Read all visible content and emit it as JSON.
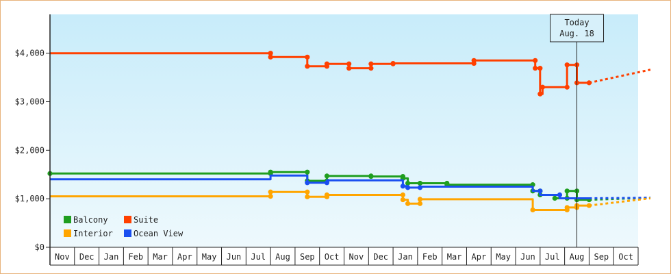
{
  "chart_data": {
    "type": "line",
    "title": "",
    "xlabel": "",
    "ylabel": "",
    "ylim": [
      0,
      4800
    ],
    "y_ticks": [
      "$0",
      "$1,000",
      "$2,000",
      "$3,000",
      "$4,000"
    ],
    "y_tick_values": [
      0,
      1000,
      2000,
      3000,
      4000
    ],
    "months": [
      "Nov",
      "Dec",
      "Jan",
      "Feb",
      "Mar",
      "Apr",
      "May",
      "Jun",
      "Jul",
      "Aug",
      "Sep",
      "Oct",
      "Nov",
      "Dec",
      "Jan",
      "Feb",
      "Mar",
      "Apr",
      "May",
      "Jun",
      "Jul",
      "Aug",
      "Sep",
      "Oct"
    ],
    "today_label": [
      "Today",
      "Aug. 18"
    ],
    "today_index": 21.5,
    "legend_placement": "bottom-left",
    "colors": {
      "Balcony": "#1f9e1f",
      "Suite": "#ff4000",
      "Interior": "#ffa500",
      "Ocean View": "#1a4ff0",
      "bg_top": "#c8ecfa",
      "bg_bottom": "#eef9fd",
      "border": "#e8b37a"
    },
    "series": [
      {
        "name": "Suite",
        "points": [
          [
            0,
            4000
          ],
          [
            9,
            4000
          ],
          [
            9,
            3920
          ],
          [
            10.5,
            3920
          ],
          [
            10.5,
            3730
          ],
          [
            11.3,
            3730
          ],
          [
            11.3,
            3780
          ],
          [
            12.2,
            3780
          ],
          [
            12.2,
            3690
          ],
          [
            13.1,
            3690
          ],
          [
            13.1,
            3780
          ],
          [
            14,
            3780
          ],
          [
            14,
            3790
          ],
          [
            17.3,
            3790
          ],
          [
            17.3,
            3850
          ],
          [
            19.8,
            3850
          ],
          [
            19.8,
            3690
          ],
          [
            20,
            3690
          ],
          [
            20,
            3160
          ],
          [
            20.1,
            3160
          ],
          [
            20.1,
            3300
          ],
          [
            21.1,
            3300
          ],
          [
            21.1,
            3760
          ],
          [
            21.5,
            3760
          ],
          [
            21.5,
            3390
          ],
          [
            22,
            3390
          ]
        ],
        "markers": [
          [
            9,
            4000
          ],
          [
            9,
            3920
          ],
          [
            10.5,
            3920
          ],
          [
            10.5,
            3730
          ],
          [
            11.3,
            3730
          ],
          [
            11.3,
            3780
          ],
          [
            12.2,
            3780
          ],
          [
            12.2,
            3690
          ],
          [
            13.1,
            3690
          ],
          [
            13.1,
            3780
          ],
          [
            14,
            3780
          ],
          [
            14,
            3790
          ],
          [
            17.3,
            3790
          ],
          [
            17.3,
            3850
          ],
          [
            19.8,
            3850
          ],
          [
            19.8,
            3690
          ],
          [
            20,
            3690
          ],
          [
            20,
            3160
          ],
          [
            20.1,
            3300
          ],
          [
            21.1,
            3300
          ],
          [
            21.1,
            3760
          ],
          [
            21.5,
            3760
          ],
          [
            21.5,
            3390
          ],
          [
            22,
            3390
          ]
        ],
        "forecast": [
          [
            22,
            3390
          ],
          [
            24.5,
            3660
          ]
        ]
      },
      {
        "name": "Balcony",
        "points": [
          [
            0,
            1520
          ],
          [
            9,
            1520
          ],
          [
            9,
            1550
          ],
          [
            10.5,
            1550
          ],
          [
            10.5,
            1370
          ],
          [
            11.3,
            1370
          ],
          [
            11.3,
            1470
          ],
          [
            13.1,
            1470
          ],
          [
            13.1,
            1460
          ],
          [
            14.4,
            1460
          ],
          [
            14.4,
            1420
          ],
          [
            14.6,
            1420
          ],
          [
            14.6,
            1320
          ],
          [
            15.1,
            1320
          ],
          [
            15.1,
            1320
          ],
          [
            16.2,
            1320
          ],
          [
            16.2,
            1290
          ],
          [
            19.7,
            1290
          ],
          [
            19.7,
            1160
          ],
          [
            20,
            1160
          ],
          [
            20,
            1080
          ],
          [
            20.6,
            1080
          ],
          [
            20.6,
            1010
          ],
          [
            21.1,
            1010
          ],
          [
            21.1,
            1160
          ],
          [
            21.5,
            1160
          ],
          [
            21.5,
            980
          ],
          [
            22,
            980
          ]
        ],
        "markers": [
          [
            0,
            1520
          ],
          [
            9,
            1520
          ],
          [
            9,
            1550
          ],
          [
            10.5,
            1550
          ],
          [
            10.5,
            1370
          ],
          [
            11.3,
            1370
          ],
          [
            11.3,
            1470
          ],
          [
            13.1,
            1470
          ],
          [
            13.1,
            1460
          ],
          [
            14.4,
            1460
          ],
          [
            14.4,
            1420
          ],
          [
            14.6,
            1320
          ],
          [
            15.1,
            1320
          ],
          [
            16.2,
            1320
          ],
          [
            16.2,
            1290
          ],
          [
            19.7,
            1290
          ],
          [
            19.7,
            1160
          ],
          [
            20,
            1160
          ],
          [
            20,
            1080
          ],
          [
            20.6,
            1010
          ],
          [
            21.1,
            1010
          ],
          [
            21.1,
            1160
          ],
          [
            21.5,
            1160
          ],
          [
            21.5,
            980
          ],
          [
            22,
            980
          ]
        ],
        "forecast": [
          [
            22,
            980
          ],
          [
            24.5,
            1020
          ]
        ]
      },
      {
        "name": "Ocean View",
        "points": [
          [
            0,
            1400
          ],
          [
            9,
            1400
          ],
          [
            9,
            1480
          ],
          [
            10.5,
            1480
          ],
          [
            10.5,
            1330
          ],
          [
            11.3,
            1330
          ],
          [
            11.3,
            1380
          ],
          [
            14.4,
            1380
          ],
          [
            14.4,
            1260
          ],
          [
            14.6,
            1260
          ],
          [
            14.6,
            1230
          ],
          [
            15.1,
            1230
          ],
          [
            15.1,
            1250
          ],
          [
            19.7,
            1250
          ],
          [
            19.7,
            1160
          ],
          [
            20,
            1160
          ],
          [
            20,
            1080
          ],
          [
            20.8,
            1080
          ],
          [
            20.8,
            1010
          ],
          [
            22,
            1010
          ]
        ],
        "markers": [
          [
            10.5,
            1330
          ],
          [
            11.3,
            1330
          ],
          [
            14.4,
            1260
          ],
          [
            14.6,
            1230
          ],
          [
            15.1,
            1230
          ],
          [
            20,
            1160
          ],
          [
            20.8,
            1080
          ]
        ],
        "forecast": [
          [
            22,
            1010
          ],
          [
            24.5,
            1020
          ]
        ]
      },
      {
        "name": "Interior",
        "points": [
          [
            0,
            1050
          ],
          [
            9,
            1050
          ],
          [
            9,
            1140
          ],
          [
            10.5,
            1140
          ],
          [
            10.5,
            1040
          ],
          [
            11.3,
            1040
          ],
          [
            11.3,
            1080
          ],
          [
            14.4,
            1080
          ],
          [
            14.4,
            980
          ],
          [
            14.6,
            980
          ],
          [
            14.6,
            900
          ],
          [
            15.1,
            900
          ],
          [
            15.1,
            990
          ],
          [
            19.7,
            990
          ],
          [
            19.7,
            770
          ],
          [
            21.1,
            770
          ],
          [
            21.1,
            820
          ],
          [
            21.5,
            820
          ],
          [
            21.5,
            860
          ],
          [
            22,
            860
          ]
        ],
        "markers": [
          [
            9,
            1050
          ],
          [
            9,
            1140
          ],
          [
            10.5,
            1140
          ],
          [
            10.5,
            1040
          ],
          [
            11.3,
            1040
          ],
          [
            11.3,
            1080
          ],
          [
            14.4,
            1080
          ],
          [
            14.4,
            980
          ],
          [
            14.6,
            900
          ],
          [
            15.1,
            900
          ],
          [
            15.1,
            990
          ],
          [
            19.7,
            770
          ],
          [
            21.1,
            770
          ],
          [
            21.1,
            820
          ],
          [
            21.5,
            820
          ],
          [
            21.5,
            860
          ],
          [
            22,
            860
          ]
        ],
        "forecast": [
          [
            22,
            860
          ],
          [
            24.5,
            1010
          ]
        ]
      }
    ],
    "legend": [
      {
        "name": "Balcony",
        "color": "#1f9e1f"
      },
      {
        "name": "Suite",
        "color": "#ff4000"
      },
      {
        "name": "Interior",
        "color": "#ffa500"
      },
      {
        "name": "Ocean View",
        "color": "#1a4ff0"
      }
    ]
  }
}
